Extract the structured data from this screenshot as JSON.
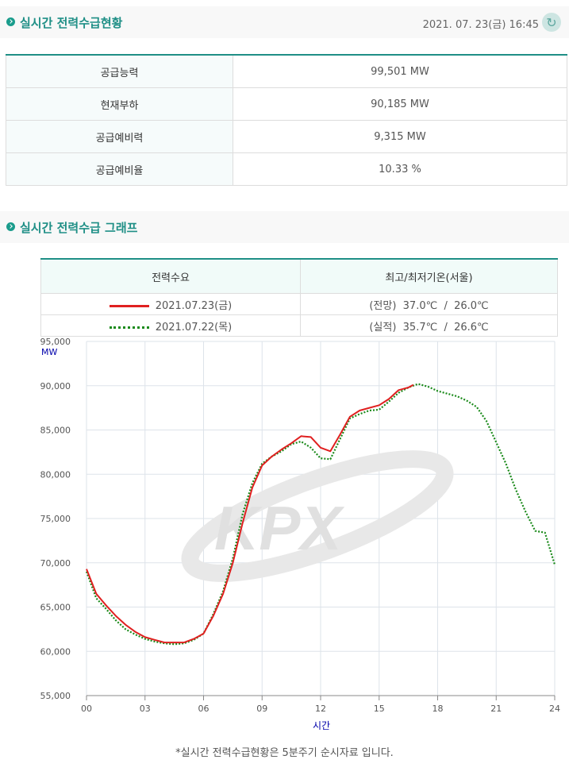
{
  "header": {
    "title": "실시간 전력수급현황",
    "timestamp": "2021. 07. 23(금) 16:45",
    "refresh_icon": "refresh-icon"
  },
  "stats": [
    {
      "label": "공급능력",
      "value": "99,501 MW"
    },
    {
      "label": "현재부하",
      "value": "90,185 MW"
    },
    {
      "label": "공급예비력",
      "value": "9,315 MW"
    },
    {
      "label": "공급예비율",
      "value": "10.33 %"
    }
  ],
  "graph_section": {
    "title": "실시간 전력수급 그래프"
  },
  "legend": {
    "col1_header": "전력수요",
    "col2_header": "최고/최저기온(서울)",
    "rows": [
      {
        "date": "2021.07.23(금)",
        "temp": "(전망)  37.0℃  /  26.0℃",
        "color": "#e02020"
      },
      {
        "date": "2021.07.22(목)",
        "temp": "(실적)  35.7℃  /  26.6℃",
        "color": "#1a8a1a"
      }
    ]
  },
  "watermark": "KPX",
  "footnote": "*실시간 전력수급현황은 5분주기 순시자료 입니다.",
  "chart_data": {
    "type": "line",
    "ylabel": "MW",
    "xlabel": "시간",
    "ylim": [
      55000,
      95000
    ],
    "xlim": [
      0,
      24
    ],
    "yticks": [
      "55,000",
      "60,000",
      "65,000",
      "70,000",
      "75,000",
      "80,000",
      "85,000",
      "90,000",
      "95,000"
    ],
    "xticks": [
      "00",
      "03",
      "06",
      "09",
      "12",
      "15",
      "18",
      "21",
      "24"
    ],
    "grid": true,
    "series": [
      {
        "name": "2021.07.23(금)",
        "color": "#e02020",
        "style": "solid",
        "x": [
          0,
          0.5,
          1,
          1.5,
          2,
          2.5,
          3,
          3.5,
          4,
          4.5,
          5,
          5.5,
          6,
          6.5,
          7,
          7.5,
          8,
          8.5,
          9,
          9.5,
          10,
          10.5,
          11,
          11.5,
          12,
          12.5,
          13,
          13.5,
          14,
          14.5,
          15,
          15.5,
          16,
          16.5,
          16.75
        ],
        "values": [
          69300,
          66500,
          65200,
          64000,
          63000,
          62200,
          61600,
          61300,
          61000,
          61000,
          61000,
          61400,
          62000,
          64000,
          66500,
          70000,
          74500,
          78500,
          81000,
          82000,
          82800,
          83500,
          84300,
          84200,
          83000,
          82600,
          84500,
          86500,
          87200,
          87500,
          87800,
          88500,
          89500,
          89800,
          90100
        ]
      },
      {
        "name": "2021.07.22(목)",
        "color": "#1a8a1a",
        "style": "dotted",
        "x": [
          0,
          0.5,
          1,
          1.5,
          2,
          2.5,
          3,
          3.5,
          4,
          4.5,
          5,
          5.5,
          6,
          6.5,
          7,
          7.5,
          8,
          8.5,
          9,
          9.5,
          10,
          10.5,
          11,
          11.5,
          12,
          12.5,
          13,
          13.5,
          14,
          14.5,
          15,
          15.5,
          16,
          16.5,
          17,
          17.5,
          18,
          18.5,
          19,
          19.5,
          20,
          20.5,
          21,
          21.5,
          22,
          22.5,
          23,
          23.5,
          24
        ],
        "values": [
          69000,
          66000,
          64800,
          63500,
          62500,
          61900,
          61400,
          61100,
          60900,
          60800,
          60900,
          61300,
          62000,
          64200,
          66800,
          70500,
          75500,
          79000,
          81200,
          82000,
          82600,
          83400,
          83700,
          83000,
          81800,
          81700,
          84000,
          86300,
          86800,
          87200,
          87300,
          88200,
          89200,
          89800,
          90200,
          89900,
          89400,
          89100,
          88800,
          88300,
          87600,
          86000,
          83600,
          81200,
          78300,
          75800,
          73600,
          73400,
          69800
        ]
      }
    ]
  }
}
